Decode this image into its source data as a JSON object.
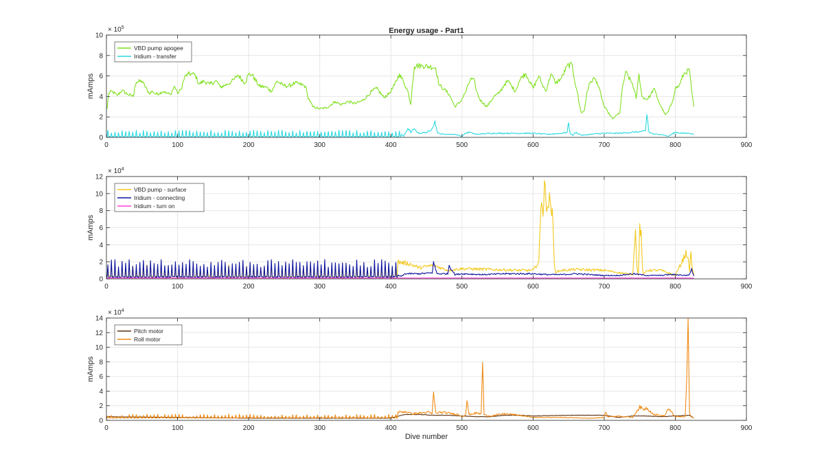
{
  "figure_title": "Energy usage - Part1",
  "colors": {
    "vbd_apogee": "#7fe01e",
    "iridium_transfer": "#2ad8e0",
    "vbd_surface": "#f2c81a",
    "iridium_connecting": "#0b109c",
    "iridium_turnon": "#ff3fd8",
    "pitch_motor": "#5a2e0e",
    "roll_motor": "#ef8a14",
    "grid": "#e6e6e6",
    "axis": "#262626"
  },
  "chart_data": [
    {
      "type": "line",
      "title": "Energy usage - Part1",
      "xlabel": "",
      "ylabel": "mAmps",
      "exponent_label": "× 10",
      "exponent": "5",
      "xlim": [
        0,
        900
      ],
      "ylim": [
        0,
        10
      ],
      "xticks": [
        "0",
        "100",
        "200",
        "300",
        "400",
        "500",
        "600",
        "700",
        "800",
        "900"
      ],
      "yticks": [
        "0",
        "2",
        "4",
        "6",
        "8",
        "10"
      ],
      "grid": true,
      "legend_position": "top-left",
      "series": [
        {
          "name": "VBD pump apogee",
          "color_key": "vbd_apogee",
          "x": [
            1,
            3,
            8,
            15,
            22,
            30,
            38,
            40,
            42,
            50,
            60,
            65,
            70,
            80,
            85,
            90,
            96,
            100,
            105,
            110,
            115,
            120,
            125,
            130,
            137,
            145,
            155,
            160,
            170,
            175,
            180,
            185,
            195,
            200,
            205,
            215,
            225,
            232,
            240,
            248,
            256,
            265,
            272,
            280,
            283,
            290,
            300,
            310,
            322,
            330,
            340,
            350,
            360,
            368,
            373,
            380,
            390,
            398,
            405,
            412,
            418,
            424,
            428,
            430,
            433,
            436,
            445,
            455,
            463,
            468,
            475,
            482,
            490,
            498,
            505,
            512,
            518,
            520,
            525,
            535,
            545,
            552,
            560,
            565,
            570,
            575,
            580,
            585,
            590,
            600,
            608,
            612,
            618,
            625,
            632,
            640,
            648,
            655,
            658,
            662,
            665,
            668,
            672,
            676,
            680,
            686,
            690,
            696,
            700,
            705,
            712,
            718,
            722,
            725,
            730,
            740,
            745,
            749,
            753,
            760,
            765,
            770,
            775,
            780,
            786,
            790,
            796,
            800,
            805,
            812,
            820,
            823,
            826
          ],
          "values": [
            2.8,
            4.3,
            4.5,
            4.1,
            4.6,
            4.2,
            4.0,
            5.0,
            5.4,
            5.5,
            4.3,
            4.5,
            4.2,
            4.5,
            4.3,
            4.2,
            5.0,
            4.3,
            4.7,
            5.9,
            6.2,
            6.2,
            6.1,
            5.2,
            5.5,
            5.2,
            5.5,
            4.9,
            5.2,
            5.4,
            5.7,
            6.1,
            5.3,
            6.2,
            6.1,
            5.0,
            4.9,
            4.5,
            5.5,
            5.1,
            5.0,
            5.3,
            5.2,
            5.0,
            4.0,
            3.0,
            2.8,
            2.9,
            3.5,
            3.2,
            3.5,
            3.3,
            3.6,
            4.1,
            4.5,
            4.8,
            3.9,
            4.3,
            5.1,
            6.2,
            5.4,
            4.5,
            3.2,
            5.0,
            6.9,
            7.0,
            7.0,
            6.9,
            6.8,
            5.1,
            4.7,
            4.2,
            3.0,
            3.5,
            4.4,
            5.7,
            5.5,
            4.6,
            3.7,
            3.0,
            4.0,
            4.3,
            5.2,
            5.5,
            5.0,
            4.5,
            5.4,
            6.0,
            6.2,
            4.8,
            6.0,
            5.3,
            4.5,
            6.2,
            5.3,
            5.8,
            7.0,
            7.1,
            5.7,
            4.5,
            3.2,
            2.4,
            2.6,
            4.5,
            5.3,
            5.8,
            5.4,
            4.0,
            3.0,
            2.5,
            1.8,
            2.2,
            2.4,
            4.5,
            6.4,
            5.2,
            3.8,
            6.2,
            4.0,
            3.7,
            4.1,
            4.8,
            3.8,
            3.0,
            2.2,
            2.5,
            3.5,
            4.8,
            5.0,
            6.2,
            6.6,
            4.5,
            3.0
          ]
        },
        {
          "name": "Iridium - transfer",
          "color_key": "iridium_transfer",
          "x": [
            5,
            60,
            120,
            190,
            260,
            330,
            400,
            415,
            418,
            424,
            428,
            432,
            440,
            450,
            455,
            462,
            466,
            475,
            490,
            500,
            505,
            510,
            520,
            540,
            560,
            580,
            600,
            620,
            640,
            648,
            650,
            652,
            656,
            660,
            665,
            670,
            680,
            700,
            720,
            740,
            758,
            760,
            763,
            770,
            780,
            790,
            800,
            810,
            820,
            826
          ],
          "values": [
            0.3,
            0.3,
            0.3,
            0.3,
            0.3,
            0.3,
            0.4,
            0.3,
            0.1,
            0.9,
            0.5,
            0.8,
            0.4,
            0.5,
            0.6,
            1.5,
            0.4,
            0.3,
            0.3,
            0.1,
            0.4,
            0.5,
            0.3,
            0.4,
            0.4,
            0.4,
            0.4,
            0.3,
            0.4,
            0.5,
            1.5,
            0.4,
            0.2,
            0.5,
            0.3,
            0.2,
            0.3,
            0.4,
            0.4,
            0.5,
            0.6,
            2.3,
            0.5,
            0.3,
            0.3,
            0.1,
            0.5,
            0.4,
            0.4,
            0.3
          ],
          "spikes_until": 415,
          "spike_base": 0.05,
          "spike_peak": 0.6
        }
      ]
    },
    {
      "type": "line",
      "title": "",
      "xlabel": "",
      "ylabel": "mAmps",
      "exponent_label": "× 10",
      "exponent": "4",
      "xlim": [
        0,
        900
      ],
      "ylim": [
        0,
        12
      ],
      "xticks": [
        "0",
        "100",
        "200",
        "300",
        "400",
        "500",
        "600",
        "700",
        "800",
        "900"
      ],
      "yticks": [
        "0",
        "2",
        "4",
        "6",
        "8",
        "10",
        "12"
      ],
      "grid": true,
      "legend_position": "top-left",
      "series": [
        {
          "name": "VBD pump - surface",
          "color_key": "vbd_surface",
          "x": [
            0,
            3,
            6,
            10,
            50,
            100,
            150,
            200,
            250,
            280,
            285,
            300,
            350,
            400,
            410,
            415,
            425,
            440,
            460,
            480,
            500,
            540,
            580,
            600,
            608,
            610,
            612,
            614,
            616,
            618,
            620,
            622,
            624,
            626,
            628,
            630,
            632,
            640,
            660,
            700,
            740,
            742,
            744,
            746,
            748,
            750,
            752,
            754,
            756,
            760,
            780,
            800,
            815,
            817,
            820,
            822,
            824,
            826
          ],
          "values": [
            3.0,
            2.0,
            0.5,
            0.8,
            0.6,
            0.7,
            0.8,
            1.0,
            1.0,
            1.2,
            1.5,
            1.0,
            1.3,
            1.2,
            2.0,
            1.9,
            1.8,
            1.3,
            1.6,
            1.0,
            1.2,
            1.1,
            1.0,
            1.0,
            2.0,
            6.0,
            10.0,
            8.0,
            10.7,
            9.0,
            9.5,
            8.5,
            9.3,
            8.5,
            6.0,
            1.5,
            0.8,
            1.0,
            1.1,
            1.0,
            0.5,
            3.0,
            6.3,
            1.5,
            0.4,
            6.3,
            5.0,
            1.0,
            0.5,
            1.0,
            1.0,
            0.4,
            3.0,
            2.8,
            1.0,
            2.9,
            1.2,
            0.5
          ],
          "spikes_until": 410,
          "spike_base": 0.2,
          "spike_peak": 1.4
        },
        {
          "name": "Iridium - connecting",
          "color_key": "iridium_connecting",
          "x": [
            0,
            100,
            200,
            300,
            365,
            368,
            370,
            373,
            380,
            410,
            415,
            420,
            440,
            458,
            460,
            465,
            480,
            482,
            490,
            500,
            530,
            560,
            600,
            620,
            640,
            660,
            680,
            700,
            720,
            740,
            760,
            780,
            790,
            800,
            815,
            820,
            823,
            826
          ],
          "values": [
            0.3,
            0.4,
            0.5,
            0.6,
            1.0,
            3.7,
            0.8,
            0.6,
            0.5,
            0.4,
            0.3,
            0.6,
            0.6,
            0.7,
            1.9,
            0.6,
            0.6,
            1.6,
            0.5,
            0.6,
            0.5,
            0.6,
            0.6,
            0.5,
            0.5,
            0.6,
            0.5,
            0.4,
            0.4,
            0.6,
            0.4,
            0.4,
            0.5,
            0.5,
            0.4,
            0.5,
            1.2,
            0.3
          ],
          "spikes_until": 410,
          "spike_base": 0.1,
          "spike_peak": 1.9
        },
        {
          "name": "Iridium - turn on",
          "color_key": "iridium_turnon",
          "x": [
            0,
            200,
            400,
            600,
            826
          ],
          "values": [
            0.1,
            0.1,
            0.1,
            0.1,
            0.1
          ]
        }
      ]
    },
    {
      "type": "line",
      "title": "",
      "xlabel": "Dive number",
      "ylabel": "mAmps",
      "exponent_label": "× 10",
      "exponent": "4",
      "xlim": [
        0,
        900
      ],
      "ylim": [
        0,
        14
      ],
      "xticks": [
        "0",
        "100",
        "200",
        "300",
        "400",
        "500",
        "600",
        "700",
        "800",
        "900"
      ],
      "yticks": [
        "0",
        "2",
        "4",
        "6",
        "8",
        "10",
        "12",
        "14"
      ],
      "grid": true,
      "legend_position": "top-left",
      "series": [
        {
          "name": "Pitch motor",
          "color_key": "pitch_motor",
          "x": [
            0,
            100,
            200,
            300,
            400,
            415,
            420,
            440,
            460,
            480,
            500,
            520,
            540,
            560,
            580,
            600,
            650,
            700,
            720,
            740,
            760,
            780,
            800,
            820,
            826
          ],
          "values": [
            0.5,
            0.4,
            0.3,
            0.3,
            0.3,
            0.7,
            0.8,
            0.8,
            0.7,
            0.7,
            0.6,
            0.5,
            0.5,
            0.7,
            0.7,
            0.6,
            0.7,
            0.7,
            0.4,
            0.6,
            0.6,
            0.5,
            0.6,
            0.7,
            0.3
          ]
        },
        {
          "name": "Roll motor",
          "color_key": "roll_motor",
          "x": [
            0,
            100,
            200,
            218,
            220,
            222,
            300,
            400,
            410,
            420,
            430,
            440,
            455,
            458,
            460,
            463,
            470,
            480,
            495,
            500,
            505,
            507,
            510,
            520,
            527,
            529,
            531,
            533,
            540,
            560,
            580,
            600,
            640,
            680,
            700,
            702,
            705,
            720,
            740,
            745,
            750,
            755,
            760,
            770,
            785,
            790,
            800,
            814,
            816,
            818,
            820,
            822,
            826
          ],
          "values": [
            0.6,
            0.5,
            0.5,
            0.5,
            1.7,
            0.4,
            0.5,
            0.5,
            1.1,
            1.2,
            0.9,
            1.0,
            1.1,
            0.8,
            4.0,
            1.0,
            1.1,
            1.0,
            0.8,
            0.5,
            0.8,
            2.6,
            0.8,
            1.0,
            0.9,
            8.4,
            0.8,
            0.7,
            0.6,
            0.9,
            0.7,
            0.4,
            0.4,
            0.3,
            0.4,
            1.2,
            0.5,
            0.6,
            0.4,
            1.2,
            1.8,
            1.5,
            1.7,
            0.8,
            0.6,
            1.6,
            0.5,
            0.5,
            6.0,
            13.9,
            1.0,
            0.5,
            0.3
          ],
          "spikes_until": 410,
          "spike_base": 0.3,
          "spike_peak": 0.7
        }
      ]
    }
  ]
}
